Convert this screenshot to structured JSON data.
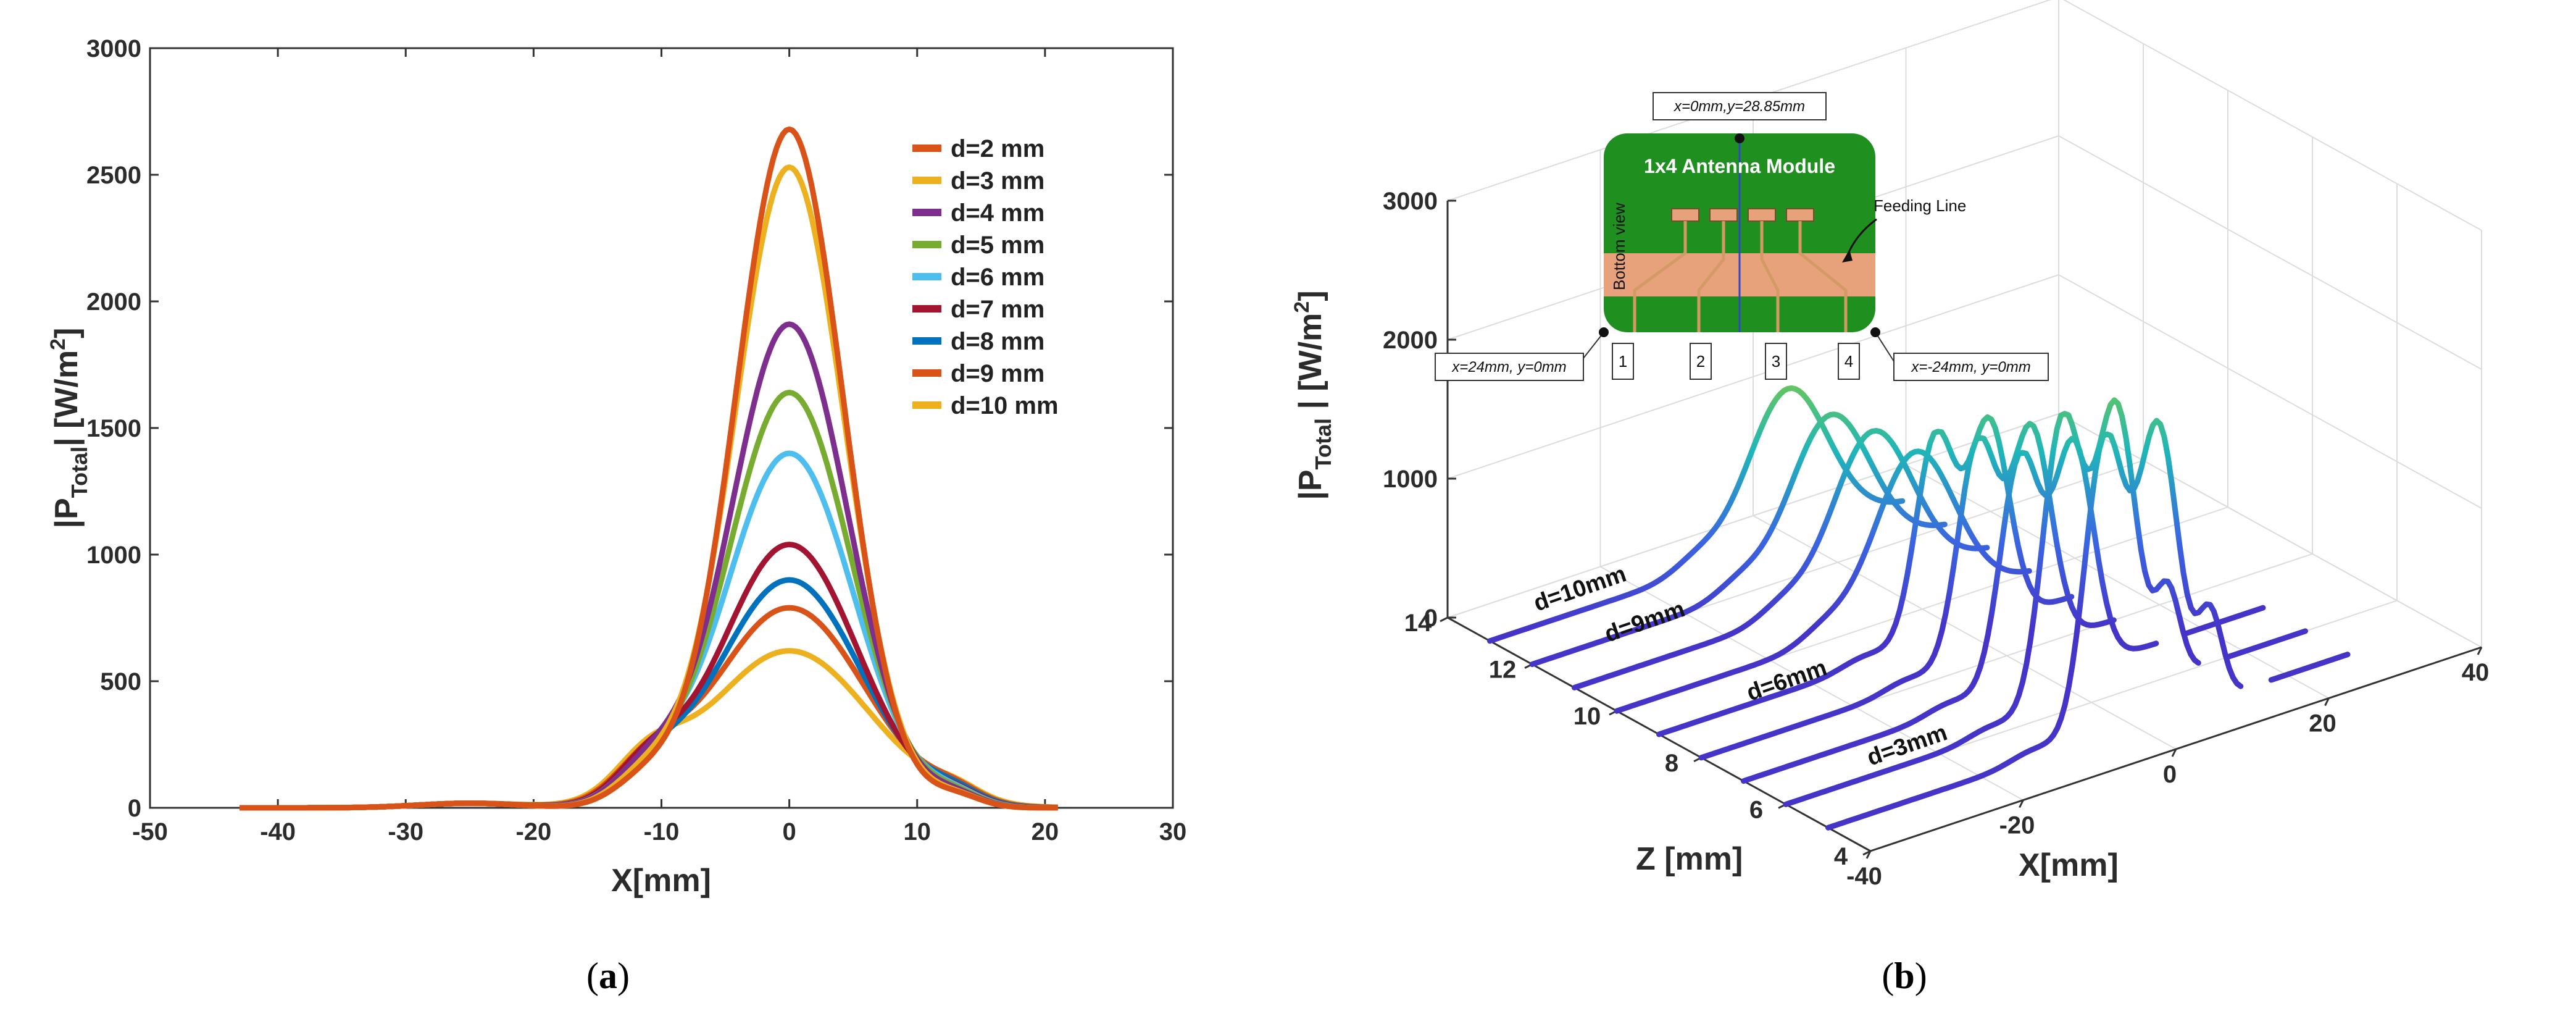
{
  "chart_data": [
    {
      "id": "a",
      "type": "line",
      "caption": "(a)",
      "xlabel": "X[mm]",
      "ylabel_main": "|P",
      "ylabel_sub": "Total",
      "ylabel_end": "| [W/m",
      "ylabel_sup": "2",
      "ylabel_close": "]",
      "xlim": [
        -50,
        30
      ],
      "ylim": [
        0,
        3000
      ],
      "xticks": [
        "-50",
        "-40",
        "-30",
        "-20",
        "-10",
        "0",
        "10",
        "20",
        "30"
      ],
      "yticks": [
        "0",
        "500",
        "1000",
        "1500",
        "2000",
        "2500",
        "3000"
      ],
      "legend_position": "top-right",
      "series": [
        {
          "name": "d=2 mm",
          "color": "#d95319",
          "peak": 2680,
          "width": 4.2,
          "xmin": -43,
          "xmax": 21
        },
        {
          "name": "d=3 mm",
          "color": "#edb120",
          "peak": 2530,
          "width": 4.3,
          "xmin": -43,
          "xmax": 21
        },
        {
          "name": "d=4 mm",
          "color": "#7e2f8e",
          "peak": 1910,
          "width": 4.6,
          "xmin": -43,
          "xmax": 21
        },
        {
          "name": "d=5 mm",
          "color": "#77ac30",
          "peak": 1640,
          "width": 4.8,
          "xmin": -43,
          "xmax": 21
        },
        {
          "name": "d=6 mm",
          "color": "#4dbeee",
          "peak": 1400,
          "width": 5.0,
          "xmin": -43,
          "xmax": 21
        },
        {
          "name": "d=7 mm",
          "color": "#a2142f",
          "peak": 1040,
          "width": 5.3,
          "xmin": -43,
          "xmax": 21
        },
        {
          "name": "d=8 mm",
          "color": "#0072bd",
          "peak": 900,
          "width": 5.6,
          "xmin": -43,
          "xmax": 21
        },
        {
          "name": "d=9 mm",
          "color": "#d95319",
          "peak": 790,
          "width": 5.9,
          "xmin": -43,
          "xmax": 21
        },
        {
          "name": "d=10 mm",
          "color": "#edb120",
          "peak": 620,
          "width": 6.3,
          "xmin": -43,
          "xmax": 21
        }
      ]
    },
    {
      "id": "b",
      "type": "line",
      "caption": "(b)",
      "xlabel": "X[mm]",
      "zlabel": "Z [mm]",
      "ylabel_main": "|P",
      "ylabel_sub": "Total",
      "ylabel_end": " | [W/m",
      "ylabel_sup": "2",
      "ylabel_close": "]",
      "xlim": [
        -40,
        40
      ],
      "zlim": [
        4,
        14
      ],
      "ylim": [
        0,
        3000
      ],
      "xticks": [
        "-40",
        "-20",
        "0",
        "20",
        "40"
      ],
      "zticks": [
        "4",
        "6",
        "8",
        "10",
        "12",
        "14"
      ],
      "yticks": [
        "0",
        "1000",
        "2000",
        "3000"
      ],
      "series": [
        {
          "z": 13.0,
          "peak": 1100,
          "dual": false
        },
        {
          "z": 12.0,
          "peak": 1080,
          "dual": false
        },
        {
          "z": 11.0,
          "peak": 1130,
          "dual": false
        },
        {
          "z": 10.0,
          "peak": 1150,
          "dual": false
        },
        {
          "z": 9.0,
          "peak": 1480,
          "dual": true
        },
        {
          "z": 8.0,
          "peak": 1600,
          "dual": true
        },
        {
          "z": 7.0,
          "peak": 1660,
          "dual": true
        },
        {
          "z": 6.0,
          "peak": 2100,
          "dual": true
        },
        {
          "z": 5.0,
          "peak": 2120,
          "dual": true
        }
      ],
      "curve_labels": [
        "d=10mm",
        "d=9mm",
        "d=6mm",
        "d=3mm"
      ],
      "inset": {
        "title": "1x4 Antenna Module",
        "view_label": "Bottom view",
        "feeding_label": "Feeding Line",
        "top_point": "x=0mm,y=28.85mm",
        "left_point": "x=24mm, y=0mm",
        "right_point": "x=-24mm, y=0mm",
        "ports": [
          "1",
          "2",
          "3",
          "4"
        ],
        "board_color": "#1f8f1f",
        "copper_color": "#e7a27c"
      }
    }
  ]
}
